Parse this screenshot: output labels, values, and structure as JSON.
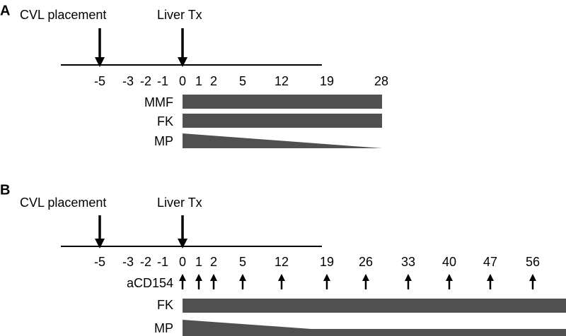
{
  "panels": [
    {
      "label": "A",
      "events": [
        {
          "label": "CVL placement"
        },
        {
          "label": "Liver Tx"
        }
      ],
      "timeline": [
        "-5",
        "-3",
        "-2",
        "-1",
        "0",
        "1",
        "2",
        "5",
        "12",
        "19",
        "28"
      ],
      "treatments": [
        {
          "label": "MMF"
        },
        {
          "label": "FK"
        },
        {
          "label": "MP"
        }
      ]
    },
    {
      "label": "B",
      "events": [
        {
          "label": "CVL placement"
        },
        {
          "label": "Liver Tx"
        }
      ],
      "timeline": [
        "-5",
        "-3",
        "-2",
        "-1",
        "0",
        "1",
        "2",
        "5",
        "12",
        "19",
        "26",
        "33",
        "40",
        "47",
        "56"
      ],
      "dosing": {
        "label": "aCD154"
      },
      "treatments": [
        {
          "label": "FK"
        },
        {
          "label": "MP"
        }
      ]
    }
  ]
}
